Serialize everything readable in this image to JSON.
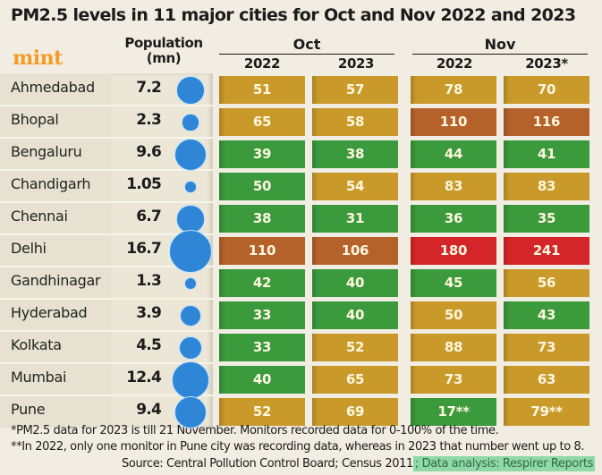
{
  "chart_data": {
    "type": "table",
    "title": "PM2.5 levels in 11 major cities for Oct and Nov 2022 and 2023",
    "brand": "mint",
    "population_header": [
      "Population",
      "(mn)"
    ],
    "months": [
      "Oct",
      "Nov"
    ],
    "years": [
      "2022",
      "2023",
      "2022",
      "2023*"
    ],
    "columns": [
      "Oct 2022",
      "Oct 2023",
      "Nov 2022",
      "Nov 2023*"
    ],
    "rows": [
      {
        "city": "Ahmedabad",
        "population": "7.2",
        "pop_value": 7.2,
        "values": [
          "51",
          "57",
          "78",
          "70"
        ],
        "levels": [
          "moderate",
          "moderate",
          "moderate",
          "moderate"
        ]
      },
      {
        "city": "Bhopal",
        "population": "2.3",
        "pop_value": 2.3,
        "values": [
          "65",
          "58",
          "110",
          "116"
        ],
        "levels": [
          "moderate",
          "moderate",
          "poor",
          "poor"
        ]
      },
      {
        "city": "Bengaluru",
        "population": "9.6",
        "pop_value": 9.6,
        "values": [
          "39",
          "38",
          "44",
          "41"
        ],
        "levels": [
          "good",
          "good",
          "good",
          "good"
        ]
      },
      {
        "city": "Chandigarh",
        "population": "1.05",
        "pop_value": 1.05,
        "values": [
          "50",
          "54",
          "83",
          "83"
        ],
        "levels": [
          "good",
          "moderate",
          "moderate",
          "moderate"
        ]
      },
      {
        "city": "Chennai",
        "population": "6.7",
        "pop_value": 6.7,
        "values": [
          "38",
          "31",
          "36",
          "35"
        ],
        "levels": [
          "good",
          "good",
          "good",
          "good"
        ]
      },
      {
        "city": "Delhi",
        "population": "16.7",
        "pop_value": 16.7,
        "values": [
          "110",
          "106",
          "180",
          "241"
        ],
        "levels": [
          "poor",
          "poor",
          "very_poor",
          "very_poor"
        ]
      },
      {
        "city": "Gandhinagar",
        "population": "1.3",
        "pop_value": 1.3,
        "values": [
          "42",
          "40",
          "45",
          "56"
        ],
        "levels": [
          "good",
          "good",
          "good",
          "moderate"
        ]
      },
      {
        "city": "Hyderabad",
        "population": "3.9",
        "pop_value": 3.9,
        "values": [
          "33",
          "40",
          "50",
          "43"
        ],
        "levels": [
          "good",
          "good",
          "moderate",
          "good"
        ]
      },
      {
        "city": "Kolkata",
        "population": "4.5",
        "pop_value": 4.5,
        "values": [
          "33",
          "52",
          "88",
          "73"
        ],
        "levels": [
          "good",
          "moderate",
          "moderate",
          "moderate"
        ]
      },
      {
        "city": "Mumbai",
        "population": "12.4",
        "pop_value": 12.4,
        "values": [
          "40",
          "65",
          "73",
          "63"
        ],
        "levels": [
          "good",
          "moderate",
          "moderate",
          "moderate"
        ]
      },
      {
        "city": "Pune",
        "population": "9.4",
        "pop_value": 9.4,
        "values": [
          "52",
          "69",
          "17**",
          "79**"
        ],
        "levels": [
          "moderate",
          "moderate",
          "good",
          "moderate"
        ]
      }
    ],
    "level_colors": {
      "good": "#3a9a3c",
      "moderate": "#c99a2a",
      "poor": "#b5622a",
      "very_poor": "#d42528"
    },
    "bubble_color": "#2f86d6"
  },
  "footnotes": [
    "*PM2.5 data for 2023 is till 21 November. Monitors recorded data for 0-100% of the time.",
    "**In 2022, only one monitor in Pune city was recording data, whereas in 2023 that number went up to 8."
  ],
  "source": {
    "text": "Source: Central Pollution Control Board; Census 2011",
    "highlight": "; Data analysis: Respirer Reports"
  }
}
